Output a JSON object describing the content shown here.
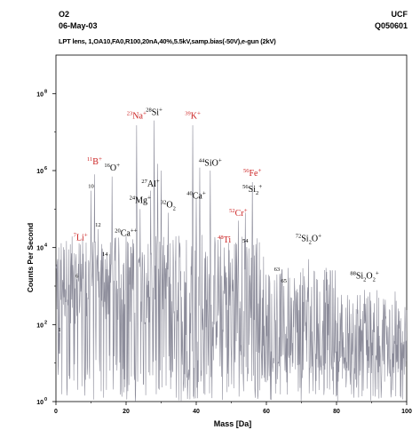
{
  "header": {
    "sample": "O2",
    "date": "06-May-03",
    "lab": "UCF",
    "sample_id": "Q050601",
    "conditions": "LPT lens, 1,OA10,FA0,R100,20nA,40%,5.5kV,samp.bias(-50V),e-gun (2kV)"
  },
  "chart_data": {
    "type": "line",
    "xlabel": "Mass [Da]",
    "ylabel": "Counts Per Second",
    "xlim": [
      0,
      100
    ],
    "ylim_log10": [
      0,
      9
    ],
    "y_scale": "log",
    "grid": false,
    "x_ticks": [
      0,
      20,
      40,
      60,
      80,
      100
    ],
    "y_ticks": [
      {
        "value": 1,
        "base": "10",
        "exp": "0"
      },
      {
        "value": 100,
        "base": "10",
        "exp": "2"
      },
      {
        "value": 10000,
        "base": "10",
        "exp": "4"
      },
      {
        "value": 1000000,
        "base": "10",
        "exp": "6"
      },
      {
        "value": 100000000,
        "base": "10",
        "exp": "8"
      }
    ],
    "line_color": "#8c8c9a",
    "peaks": [
      {
        "mass": 1,
        "counts": 60
      },
      {
        "mass": 6,
        "counts": 1500
      },
      {
        "mass": 7,
        "counts": 12000
      },
      {
        "mass": 10,
        "counts": 300000
      },
      {
        "mass": 11,
        "counts": 800000
      },
      {
        "mass": 12,
        "counts": 30000
      },
      {
        "mass": 14,
        "counts": 5000
      },
      {
        "mass": 16,
        "counts": 700000
      },
      {
        "mass": 20,
        "counts": 20000
      },
      {
        "mass": 23,
        "counts": 15000000
      },
      {
        "mass": 24,
        "counts": 100000
      },
      {
        "mass": 27,
        "counts": 300000
      },
      {
        "mass": 28,
        "counts": 20000000
      },
      {
        "mass": 29,
        "counts": 1500000
      },
      {
        "mass": 30,
        "counts": 1000000
      },
      {
        "mass": 32,
        "counts": 80000
      },
      {
        "mass": 39,
        "counts": 15000000
      },
      {
        "mass": 40,
        "counts": 200000
      },
      {
        "mass": 41,
        "counts": 1200000
      },
      {
        "mass": 44,
        "counts": 1000000
      },
      {
        "mass": 48,
        "counts": 10000
      },
      {
        "mass": 52,
        "counts": 50000
      },
      {
        "mass": 54,
        "counts": 80000
      },
      {
        "mass": 56,
        "counts": 500000
      },
      {
        "mass": 63,
        "counts": 2000
      },
      {
        "mass": 65,
        "counts": 1000
      },
      {
        "mass": 72,
        "counts": 5000
      },
      {
        "mass": 88,
        "counts": 800
      }
    ],
    "annotations": [
      {
        "mass_number": "1",
        "ion": "",
        "charge": "",
        "color": "#000000",
        "x": 1,
        "y": 60
      },
      {
        "mass_number": "6",
        "ion": "",
        "charge": "",
        "color": "#000000",
        "x": 6,
        "y": 1500
      },
      {
        "mass_number": "7",
        "ion": "Li",
        "charge": "+",
        "color": "#cc2222",
        "x": 7,
        "y": 14000
      },
      {
        "mass_number": "10",
        "ion": "",
        "charge": "",
        "color": "#000000",
        "x": 10,
        "y": 320000
      },
      {
        "mass_number": "11",
        "ion": "B",
        "charge": "+",
        "color": "#cc2222",
        "x": 11,
        "y": 1300000
      },
      {
        "mass_number": "12",
        "ion": "",
        "charge": "",
        "color": "#000000",
        "x": 12,
        "y": 32000
      },
      {
        "mass_number": "14",
        "ion": "",
        "charge": "",
        "color": "#000000",
        "x": 14,
        "y": 5500
      },
      {
        "mass_number": "16",
        "ion": "O",
        "charge": "+",
        "color": "#000000",
        "x": 16,
        "y": 900000
      },
      {
        "mass_number": "20",
        "ion": "Ca",
        "charge": "++",
        "color": "#000000",
        "x": 20,
        "y": 18000
      },
      {
        "mass_number": "23",
        "ion": "Na",
        "charge": "+",
        "color": "#cc2222",
        "x": 23,
        "y": 20000000
      },
      {
        "mass_number": "24",
        "ion": "Mg",
        "charge": "+",
        "color": "#000000",
        "x": 24,
        "y": 130000
      },
      {
        "mass_number": "27",
        "ion": "Al",
        "charge": "+",
        "color": "#000000",
        "x": 27,
        "y": 350000
      },
      {
        "mass_number": "28",
        "ion": "Si",
        "charge": "+",
        "color": "#000000",
        "x": 28,
        "y": 25000000
      },
      {
        "mass_number": "32",
        "ion": "O",
        "ion_sub": "2",
        "charge": "",
        "color": "#000000",
        "x": 32,
        "y": 100000
      },
      {
        "mass_number": "39",
        "ion": "K",
        "charge": "+",
        "color": "#cc2222",
        "x": 39,
        "y": 20000000
      },
      {
        "mass_number": "40",
        "ion": "Ca",
        "charge": "+",
        "color": "#000000",
        "x": 40,
        "y": 170000
      },
      {
        "mass_number": "44",
        "ion": "SiO",
        "charge": "+",
        "color": "#000000",
        "x": 44,
        "y": 1200000
      },
      {
        "mass_number": "48",
        "ion": "Ti",
        "charge": "",
        "color": "#cc2222",
        "x": 48,
        "y": 12000
      },
      {
        "mass_number": "52",
        "ion": "Cr",
        "charge": "+",
        "color": "#cc2222",
        "x": 52,
        "y": 60000
      },
      {
        "mass_number": "54",
        "ion": "",
        "charge": "",
        "color": "#000000",
        "x": 54,
        "y": 12000
      },
      {
        "mass_number": "56",
        "ion": "Fe",
        "charge": "+",
        "color": "#cc2222",
        "x": 56,
        "y": 650000
      },
      {
        "mass_number": "56",
        "ion": "Si",
        "ion_sub": "2",
        "charge": "+",
        "color": "#000000",
        "x": 56,
        "y": 250000
      },
      {
        "mass_number": "63",
        "ion": "",
        "charge": "",
        "color": "#000000",
        "x": 63,
        "y": 2200
      },
      {
        "mass_number": "65",
        "ion": "",
        "charge": "",
        "color": "#000000",
        "x": 65,
        "y": 1100
      },
      {
        "mass_number": "72",
        "ion": "Si",
        "ion_sub": "2",
        "ion2": "O",
        "charge": "+",
        "color": "#000000",
        "x": 72,
        "y": 13000
      },
      {
        "mass_number": "88",
        "ion": "Si",
        "ion_sub": "2",
        "ion2": "O",
        "ion2_sub": "2",
        "charge": "+",
        "color": "#000000",
        "x": 88,
        "y": 1400
      }
    ]
  }
}
